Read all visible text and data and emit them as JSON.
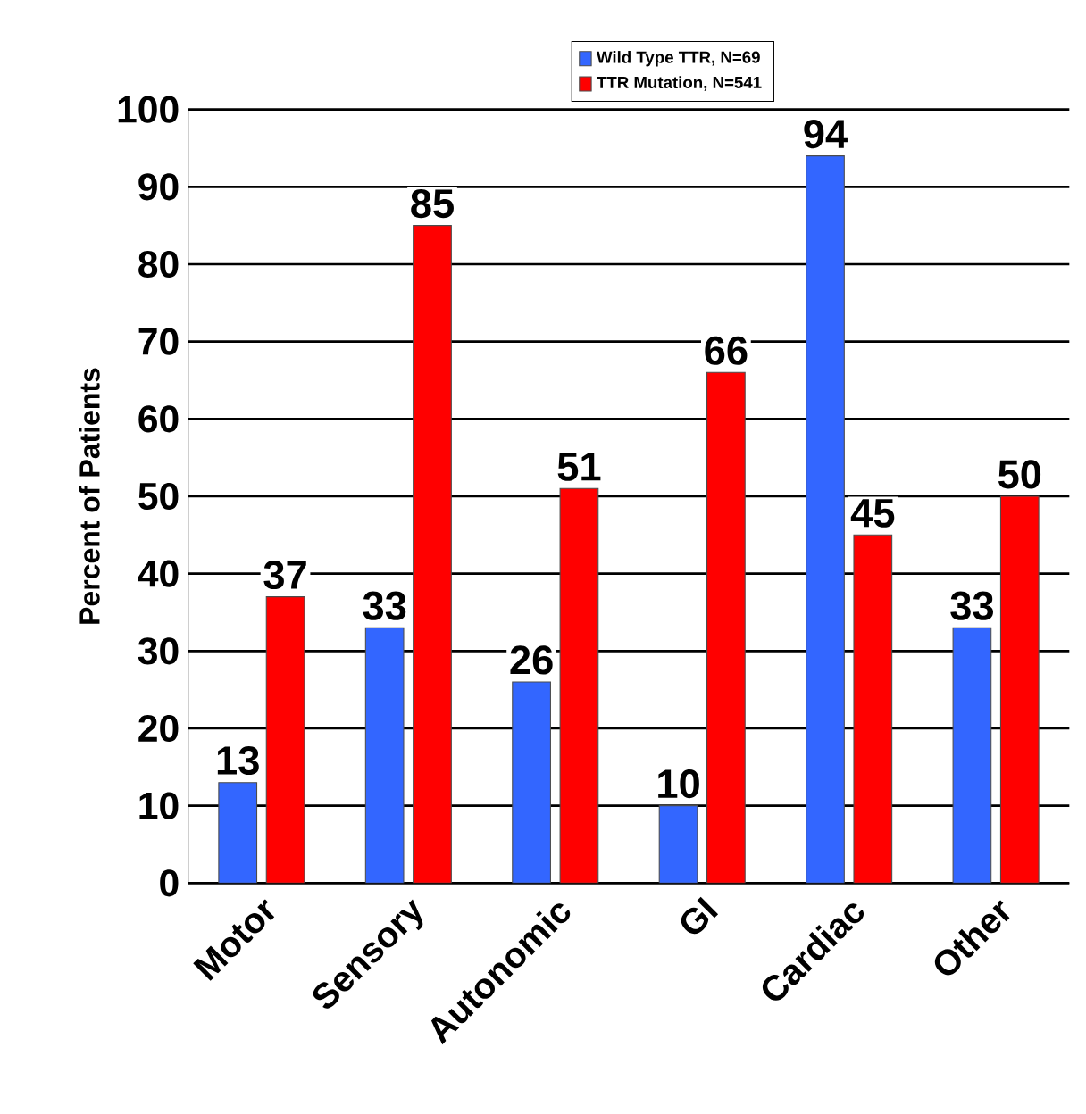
{
  "chart_data": {
    "type": "bar",
    "ylabel": "Percent of Patients",
    "categories": [
      "Motor",
      "Sensory",
      "Autonomic",
      "GI",
      "Cardiac",
      "Other"
    ],
    "series": [
      {
        "name": "Wild Type TTR, N=69",
        "color": "#3366ff",
        "values": [
          13,
          33,
          26,
          10,
          94,
          33
        ]
      },
      {
        "name": "TTR Mutation, N=541",
        "color": "#ff0000",
        "values": [
          37,
          85,
          51,
          66,
          45,
          50
        ]
      }
    ],
    "ylim": [
      0,
      100
    ],
    "yticks": [
      0,
      10,
      20,
      30,
      40,
      50,
      60,
      70,
      80,
      90,
      100
    ],
    "grid": "y",
    "legend": "top",
    "data_labels": true
  }
}
